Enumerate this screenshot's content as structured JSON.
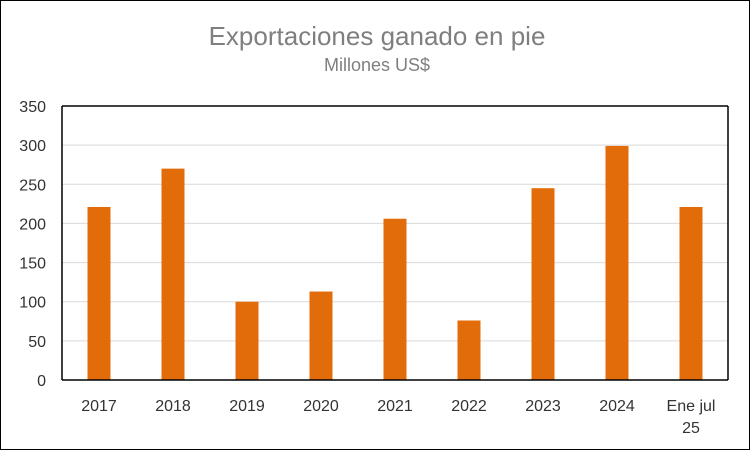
{
  "chart_data": {
    "type": "bar",
    "title": "Exportaciones ganado en pie",
    "subtitle": "Millones US$",
    "categories": [
      "2017",
      "2018",
      "2019",
      "2020",
      "2021",
      "2022",
      "2023",
      "2024",
      "Ene jul 25"
    ],
    "category_lines": [
      [
        "2017"
      ],
      [
        "2018"
      ],
      [
        "2019"
      ],
      [
        "2020"
      ],
      [
        "2021"
      ],
      [
        "2022"
      ],
      [
        "2023"
      ],
      [
        "2024"
      ],
      [
        "Ene jul",
        "25"
      ]
    ],
    "values": [
      221,
      270,
      100,
      113,
      206,
      76,
      245,
      299,
      221
    ],
    "xlabel": "",
    "ylabel": "",
    "ylim": [
      0,
      350
    ],
    "yticks": [
      0,
      50,
      100,
      150,
      200,
      250,
      300,
      350
    ],
    "grid": true,
    "bar_color": "#e36c0a",
    "grid_color": "#d9d9d9"
  }
}
